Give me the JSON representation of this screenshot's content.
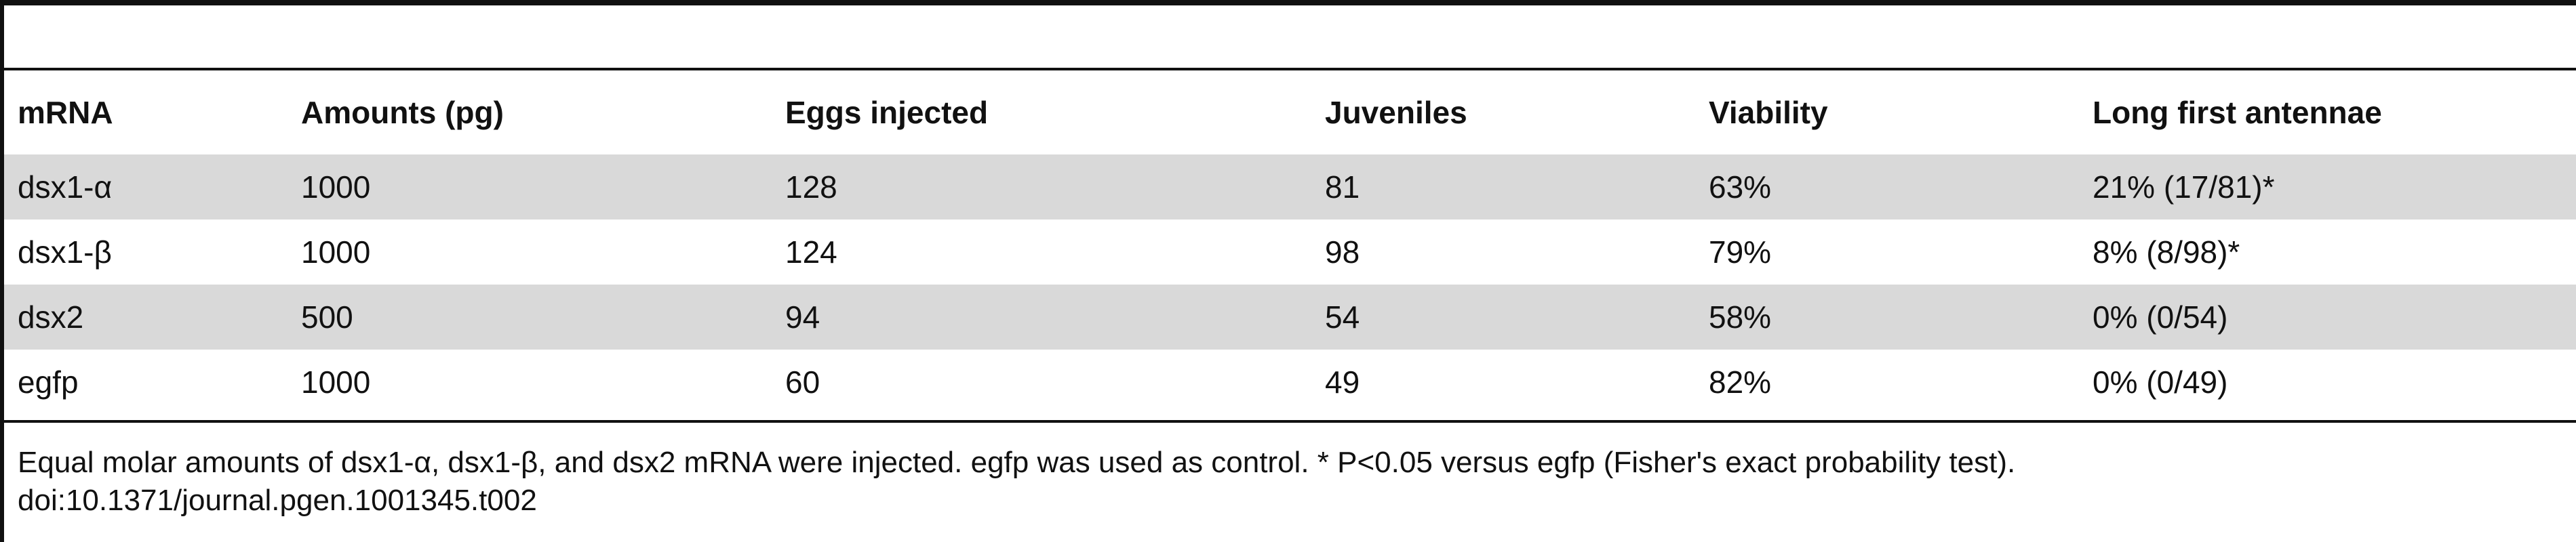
{
  "table": {
    "columns": [
      "mRNA",
      "Amounts (pg)",
      "Eggs injected",
      "Juveniles",
      "Viability",
      "Long first antennae"
    ],
    "rows": [
      [
        "dsx1-α",
        "1000",
        "128",
        "81",
        "63%",
        "21% (17/81)*"
      ],
      [
        "dsx1-β",
        "1000",
        "124",
        "98",
        "79%",
        "8% (8/98)*"
      ],
      [
        "dsx2",
        "500",
        "94",
        "54",
        "58%",
        "0% (0/54)"
      ],
      [
        "egfp",
        "1000",
        "60",
        "49",
        "82%",
        "0% (0/49)"
      ]
    ]
  },
  "footnote": {
    "note": "Equal molar amounts of dsx1-α, dsx1-β, and dsx2 mRNA were injected. egfp was used as control. * P<0.05 versus egfp (Fisher's exact probability test).",
    "doi": "doi:10.1371/journal.pgen.1001345.t002"
  }
}
